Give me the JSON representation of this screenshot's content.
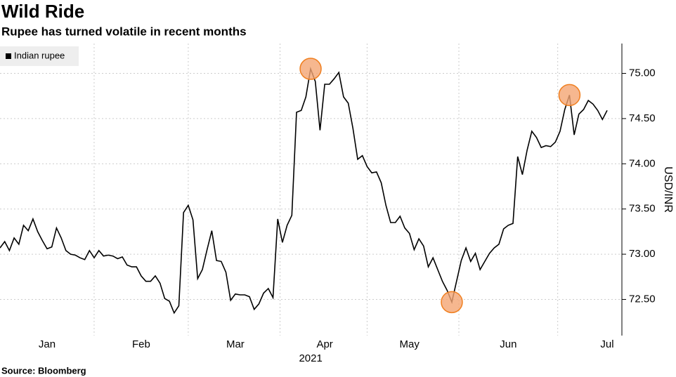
{
  "chart_data": {
    "type": "line",
    "title": "Wild Ride",
    "subtitle": "Rupee has turned volatile in recent months",
    "source": "Source: Bloomberg",
    "ylabel": "USD/INR",
    "x_sublabel": "2021",
    "categories": [
      null,
      null,
      null,
      null,
      null,
      null,
      null,
      null,
      null,
      null,
      "Jan",
      null,
      null,
      null,
      null,
      null,
      null,
      null,
      null,
      null,
      null,
      null,
      null,
      null,
      null,
      null,
      null,
      null,
      null,
      null,
      "Feb",
      null,
      null,
      null,
      null,
      null,
      null,
      null,
      null,
      null,
      null,
      null,
      null,
      null,
      null,
      null,
      null,
      null,
      null,
      null,
      "Mar",
      null,
      null,
      null,
      null,
      null,
      null,
      null,
      null,
      null,
      null,
      null,
      null,
      null,
      null,
      null,
      null,
      null,
      null,
      "Apr",
      null,
      null,
      null,
      null,
      null,
      null,
      null,
      null,
      null,
      null,
      null,
      null,
      null,
      null,
      null,
      null,
      null,
      "May",
      null,
      null,
      null,
      null,
      null,
      null,
      null,
      null,
      null,
      null,
      null,
      null,
      null,
      null,
      null,
      null,
      null,
      null,
      null,
      null,
      "Jun",
      null,
      null,
      null,
      null,
      null,
      null,
      null,
      null,
      null,
      null,
      null,
      null,
      null,
      null,
      null,
      null,
      null,
      null,
      null,
      null,
      "Jul"
    ],
    "series": [
      {
        "name": "Indian rupee",
        "color": "#000000",
        "values": [
          73.07,
          73.14,
          73.04,
          73.18,
          73.11,
          73.32,
          73.26,
          73.39,
          73.25,
          73.15,
          73.06,
          73.08,
          73.29,
          73.18,
          73.04,
          73.0,
          72.99,
          72.96,
          72.94,
          73.04,
          72.96,
          73.04,
          72.98,
          72.99,
          72.98,
          72.95,
          72.97,
          72.88,
          72.86,
          72.86,
          72.76,
          72.7,
          72.7,
          72.76,
          72.68,
          72.51,
          72.48,
          72.35,
          72.43,
          73.46,
          73.54,
          73.38,
          72.73,
          72.83,
          73.05,
          73.26,
          72.93,
          72.92,
          72.8,
          72.49,
          72.56,
          72.55,
          72.55,
          72.53,
          72.39,
          72.45,
          72.57,
          72.62,
          72.52,
          73.39,
          73.13,
          73.32,
          73.43,
          74.57,
          74.59,
          74.74,
          75.05,
          74.91,
          74.37,
          74.88,
          74.88,
          74.94,
          75.01,
          74.74,
          74.67,
          74.39,
          74.05,
          74.09,
          73.97,
          73.9,
          73.91,
          73.79,
          73.54,
          73.35,
          73.35,
          73.42,
          73.29,
          73.23,
          73.05,
          73.17,
          73.09,
          72.86,
          72.96,
          72.83,
          72.7,
          72.6,
          72.47,
          72.7,
          72.93,
          73.07,
          72.92,
          73.01,
          72.83,
          72.92,
          73.01,
          73.07,
          73.11,
          73.28,
          73.32,
          73.34,
          74.08,
          73.88,
          74.15,
          74.36,
          74.29,
          74.18,
          74.2,
          74.19,
          74.24,
          74.36,
          74.6,
          74.76,
          74.32,
          74.55,
          74.6,
          74.7,
          74.66,
          74.59,
          74.49,
          74.59
        ]
      }
    ],
    "highlight_points": [
      66,
      96,
      121
    ],
    "highlight_color": "#f4a573",
    "ylim": [
      72.1,
      75.33
    ],
    "yticks": [
      {
        "value": 72.5,
        "label": "72.50"
      },
      {
        "value": 73,
        "label": "73.00"
      },
      {
        "value": 73.5,
        "label": "73.50"
      },
      {
        "value": 74,
        "label": "74.00"
      },
      {
        "value": 74.5,
        "label": "74.50"
      },
      {
        "value": 75,
        "label": "75.00"
      }
    ],
    "grid": true,
    "legend": "top-left"
  }
}
